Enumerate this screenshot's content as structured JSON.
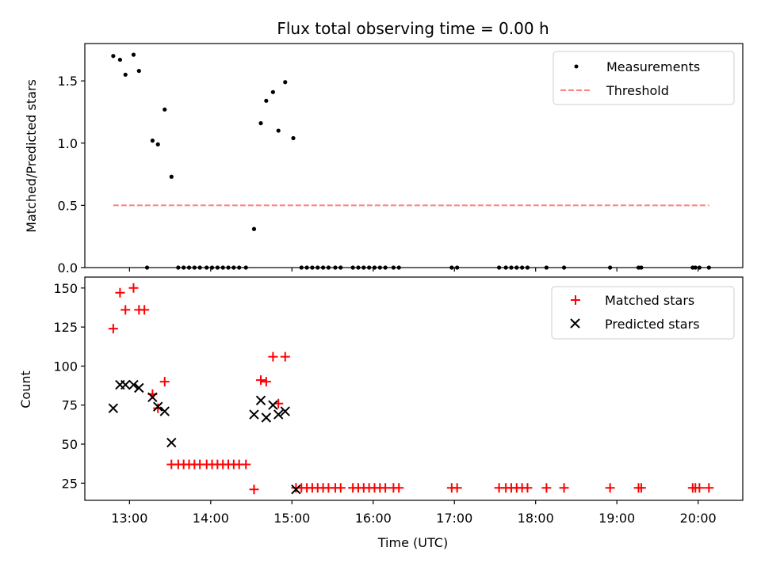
{
  "chart_data": [
    {
      "type": "scatter",
      "title": "Flux total observing time = 0.00 h",
      "xlabel": "",
      "ylabel": "Matched/Predicted stars",
      "ylim": [
        0,
        1.8
      ],
      "xlim": [
        "12:27",
        "20:33"
      ],
      "yticks": [
        0.0,
        0.5,
        1.0,
        1.5
      ],
      "ytick_labels": [
        "0.0",
        "0.5",
        "1.0",
        "1.5"
      ],
      "legend_position": "top-right",
      "grid": false,
      "series": [
        {
          "name": "Measurements",
          "color": "#000000",
          "marker": "dot",
          "points": [
            [
              "12:48",
              1.7
            ],
            [
              "12:53",
              1.67
            ],
            [
              "12:57",
              1.55
            ],
            [
              "13:03",
              1.71
            ],
            [
              "13:07",
              1.58
            ],
            [
              "13:13",
              0.0
            ],
            [
              "13:17",
              1.02
            ],
            [
              "13:21",
              0.99
            ],
            [
              "13:26",
              1.27
            ],
            [
              "13:31",
              0.73
            ],
            [
              "13:36",
              0.0
            ],
            [
              "13:40",
              0.0
            ],
            [
              "13:44",
              0.0
            ],
            [
              "13:48",
              0.0
            ],
            [
              "13:52",
              0.0
            ],
            [
              "13:57",
              0.0
            ],
            [
              "14:01",
              0.0
            ],
            [
              "14:05",
              0.0
            ],
            [
              "14:09",
              0.0
            ],
            [
              "14:13",
              0.0
            ],
            [
              "14:17",
              0.0
            ],
            [
              "14:21",
              0.0
            ],
            [
              "14:26",
              0.0
            ],
            [
              "14:32",
              0.31
            ],
            [
              "14:37",
              1.16
            ],
            [
              "14:41",
              1.34
            ],
            [
              "14:46",
              1.41
            ],
            [
              "14:50",
              1.1
            ],
            [
              "14:55",
              1.49
            ],
            [
              "15:01",
              1.04
            ],
            [
              "15:07",
              0.0
            ],
            [
              "15:11",
              0.0
            ],
            [
              "15:15",
              0.0
            ],
            [
              "15:19",
              0.0
            ],
            [
              "15:23",
              0.0
            ],
            [
              "15:27",
              0.0
            ],
            [
              "15:32",
              0.0
            ],
            [
              "15:36",
              0.0
            ],
            [
              "15:45",
              0.0
            ],
            [
              "15:49",
              0.0
            ],
            [
              "15:53",
              0.0
            ],
            [
              "15:57",
              0.0
            ],
            [
              "16:01",
              0.0
            ],
            [
              "16:05",
              0.0
            ],
            [
              "16:09",
              0.0
            ],
            [
              "16:15",
              0.0
            ],
            [
              "16:19",
              0.0
            ],
            [
              "16:58",
              0.0
            ],
            [
              "17:02",
              0.0
            ],
            [
              "17:33",
              0.0
            ],
            [
              "17:38",
              0.0
            ],
            [
              "17:42",
              0.0
            ],
            [
              "17:46",
              0.0
            ],
            [
              "17:50",
              0.0
            ],
            [
              "17:54",
              0.0
            ],
            [
              "18:08",
              0.0
            ],
            [
              "18:21",
              0.0
            ],
            [
              "18:55",
              0.0
            ],
            [
              "19:16",
              0.0
            ],
            [
              "19:18",
              0.0
            ],
            [
              "19:56",
              0.0
            ],
            [
              "19:58",
              0.0
            ],
            [
              "20:01",
              0.0
            ],
            [
              "20:08",
              0.0
            ]
          ]
        },
        {
          "name": "Threshold",
          "color": "#ff7f7f",
          "style": "dashed",
          "points": [
            [
              "12:48",
              0.5
            ],
            [
              "20:08",
              0.5
            ]
          ]
        }
      ]
    },
    {
      "type": "scatter",
      "title": "",
      "xlabel": "Time (UTC)",
      "ylabel": "Count",
      "ylim": [
        14,
        157
      ],
      "xlim": [
        "12:27",
        "20:33"
      ],
      "yticks": [
        25,
        50,
        75,
        100,
        125,
        150
      ],
      "ytick_labels": [
        "25",
        "50",
        "75",
        "100",
        "125",
        "150"
      ],
      "xticks": [
        "13:00",
        "14:00",
        "15:00",
        "16:00",
        "17:00",
        "18:00",
        "19:00",
        "20:00"
      ],
      "xtick_labels": [
        "13:00",
        "14:00",
        "15:00",
        "16:00",
        "17:00",
        "18:00",
        "19:00",
        "20:00"
      ],
      "legend_position": "top-right",
      "grid": false,
      "series": [
        {
          "name": "Matched stars",
          "color": "#ff0000",
          "marker": "plus",
          "points": [
            [
              "12:48",
              124
            ],
            [
              "12:53",
              147
            ],
            [
              "12:57",
              136
            ],
            [
              "13:03",
              150
            ],
            [
              "13:07",
              136
            ],
            [
              "13:11",
              136
            ],
            [
              "13:17",
              82
            ],
            [
              "13:21",
              73
            ],
            [
              "13:26",
              90
            ],
            [
              "13:31",
              37
            ],
            [
              "13:36",
              37
            ],
            [
              "13:40",
              37
            ],
            [
              "13:44",
              37
            ],
            [
              "13:48",
              37
            ],
            [
              "13:52",
              37
            ],
            [
              "13:57",
              37
            ],
            [
              "14:01",
              37
            ],
            [
              "14:05",
              37
            ],
            [
              "14:09",
              37
            ],
            [
              "14:13",
              37
            ],
            [
              "14:17",
              37
            ],
            [
              "14:21",
              37
            ],
            [
              "14:26",
              37
            ],
            [
              "14:32",
              21
            ],
            [
              "14:37",
              91
            ],
            [
              "14:41",
              90
            ],
            [
              "14:46",
              106
            ],
            [
              "14:50",
              76
            ],
            [
              "14:55",
              106
            ],
            [
              "15:03",
              22
            ],
            [
              "15:07",
              22
            ],
            [
              "15:11",
              22
            ],
            [
              "15:15",
              22
            ],
            [
              "15:19",
              22
            ],
            [
              "15:23",
              22
            ],
            [
              "15:27",
              22
            ],
            [
              "15:32",
              22
            ],
            [
              "15:36",
              22
            ],
            [
              "15:45",
              22
            ],
            [
              "15:49",
              22
            ],
            [
              "15:53",
              22
            ],
            [
              "15:57",
              22
            ],
            [
              "16:01",
              22
            ],
            [
              "16:05",
              22
            ],
            [
              "16:09",
              22
            ],
            [
              "16:15",
              22
            ],
            [
              "16:19",
              22
            ],
            [
              "16:58",
              22
            ],
            [
              "17:02",
              22
            ],
            [
              "17:33",
              22
            ],
            [
              "17:38",
              22
            ],
            [
              "17:42",
              22
            ],
            [
              "17:46",
              22
            ],
            [
              "17:50",
              22
            ],
            [
              "17:54",
              22
            ],
            [
              "18:08",
              22
            ],
            [
              "18:21",
              22
            ],
            [
              "18:55",
              22
            ],
            [
              "19:16",
              22
            ],
            [
              "19:18",
              22
            ],
            [
              "19:56",
              22
            ],
            [
              "19:58",
              22
            ],
            [
              "20:01",
              22
            ],
            [
              "20:08",
              22
            ]
          ]
        },
        {
          "name": "Predicted stars",
          "color": "#000000",
          "marker": "x",
          "points": [
            [
              "12:48",
              73
            ],
            [
              "12:53",
              88
            ],
            [
              "12:57",
              88
            ],
            [
              "13:03",
              88
            ],
            [
              "13:07",
              86
            ],
            [
              "13:17",
              80
            ],
            [
              "13:21",
              74
            ],
            [
              "13:26",
              71
            ],
            [
              "13:31",
              51
            ],
            [
              "14:32",
              69
            ],
            [
              "14:37",
              78
            ],
            [
              "14:41",
              67
            ],
            [
              "14:46",
              75
            ],
            [
              "14:50",
              69
            ],
            [
              "14:55",
              71
            ],
            [
              "15:03",
              21
            ]
          ]
        }
      ]
    }
  ]
}
